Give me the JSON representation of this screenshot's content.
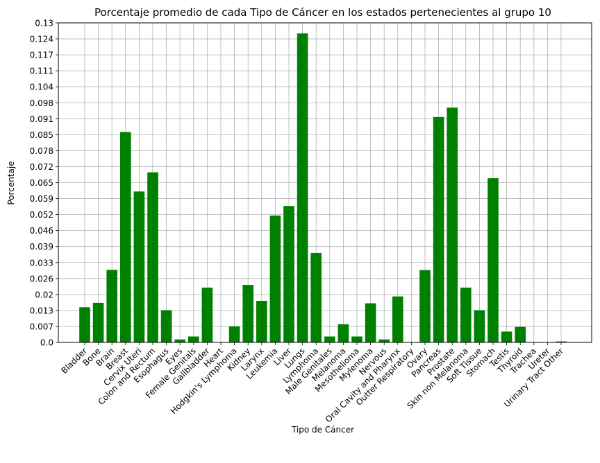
{
  "chart_data": {
    "type": "bar",
    "title": "Porcentaje promedio de cada Tipo de Cáncer en los estados pertenecientes al grupo 10",
    "xlabel": "Tipo de Cáncer",
    "ylabel": "Porcentaje",
    "ylim": [
      0,
      0.13
    ],
    "grid": true,
    "yticks": [
      "0.0",
      "0.007",
      "0.013",
      "0.02",
      "0.026",
      "0.033",
      "0.039",
      "0.046",
      "0.052",
      "0.059",
      "0.065",
      "0.072",
      "0.078",
      "0.085",
      "0.091",
      "0.098",
      "0.104",
      "0.111",
      "0.117",
      "0.124",
      "0.13"
    ],
    "bar_color": "#008000",
    "categories": [
      "Bladder",
      "Bone",
      "Brain",
      "Breast",
      "Cervix Uteri",
      "Colon and Rectum",
      "Esophagus",
      "Eyes",
      "Female Genitals",
      "Gallbladder",
      "Heart",
      "Hodgkin's Lymphoma",
      "Kidney",
      "Larynx",
      "Leukemia",
      "Liver",
      "Lungs",
      "Lymphoma",
      "Male Genitales",
      "Melanoma",
      "Mesothelioma",
      "Mylenoma",
      "Nervous",
      "Oral Cavity and Pharynx",
      "Outter Respiratory",
      "Ovary",
      "Pancreas",
      "Prostate",
      "Skin non Melanoma",
      "Soft Tissue",
      "Stomach",
      "Testis",
      "Thyroid",
      "Trachea",
      "Ureter",
      "Urinary Tract Other"
    ],
    "values": [
      0.0143,
      0.0161,
      0.0295,
      0.0856,
      0.0614,
      0.0692,
      0.0131,
      0.0012,
      0.0024,
      0.0223,
      0.0,
      0.0065,
      0.0234,
      0.0169,
      0.0516,
      0.0555,
      0.1257,
      0.0364,
      0.0024,
      0.0074,
      0.0024,
      0.0159,
      0.0012,
      0.0187,
      0.0,
      0.0294,
      0.0917,
      0.0955,
      0.0223,
      0.0131,
      0.0668,
      0.0044,
      0.0063,
      0.0,
      0.0,
      0.0004
    ]
  }
}
